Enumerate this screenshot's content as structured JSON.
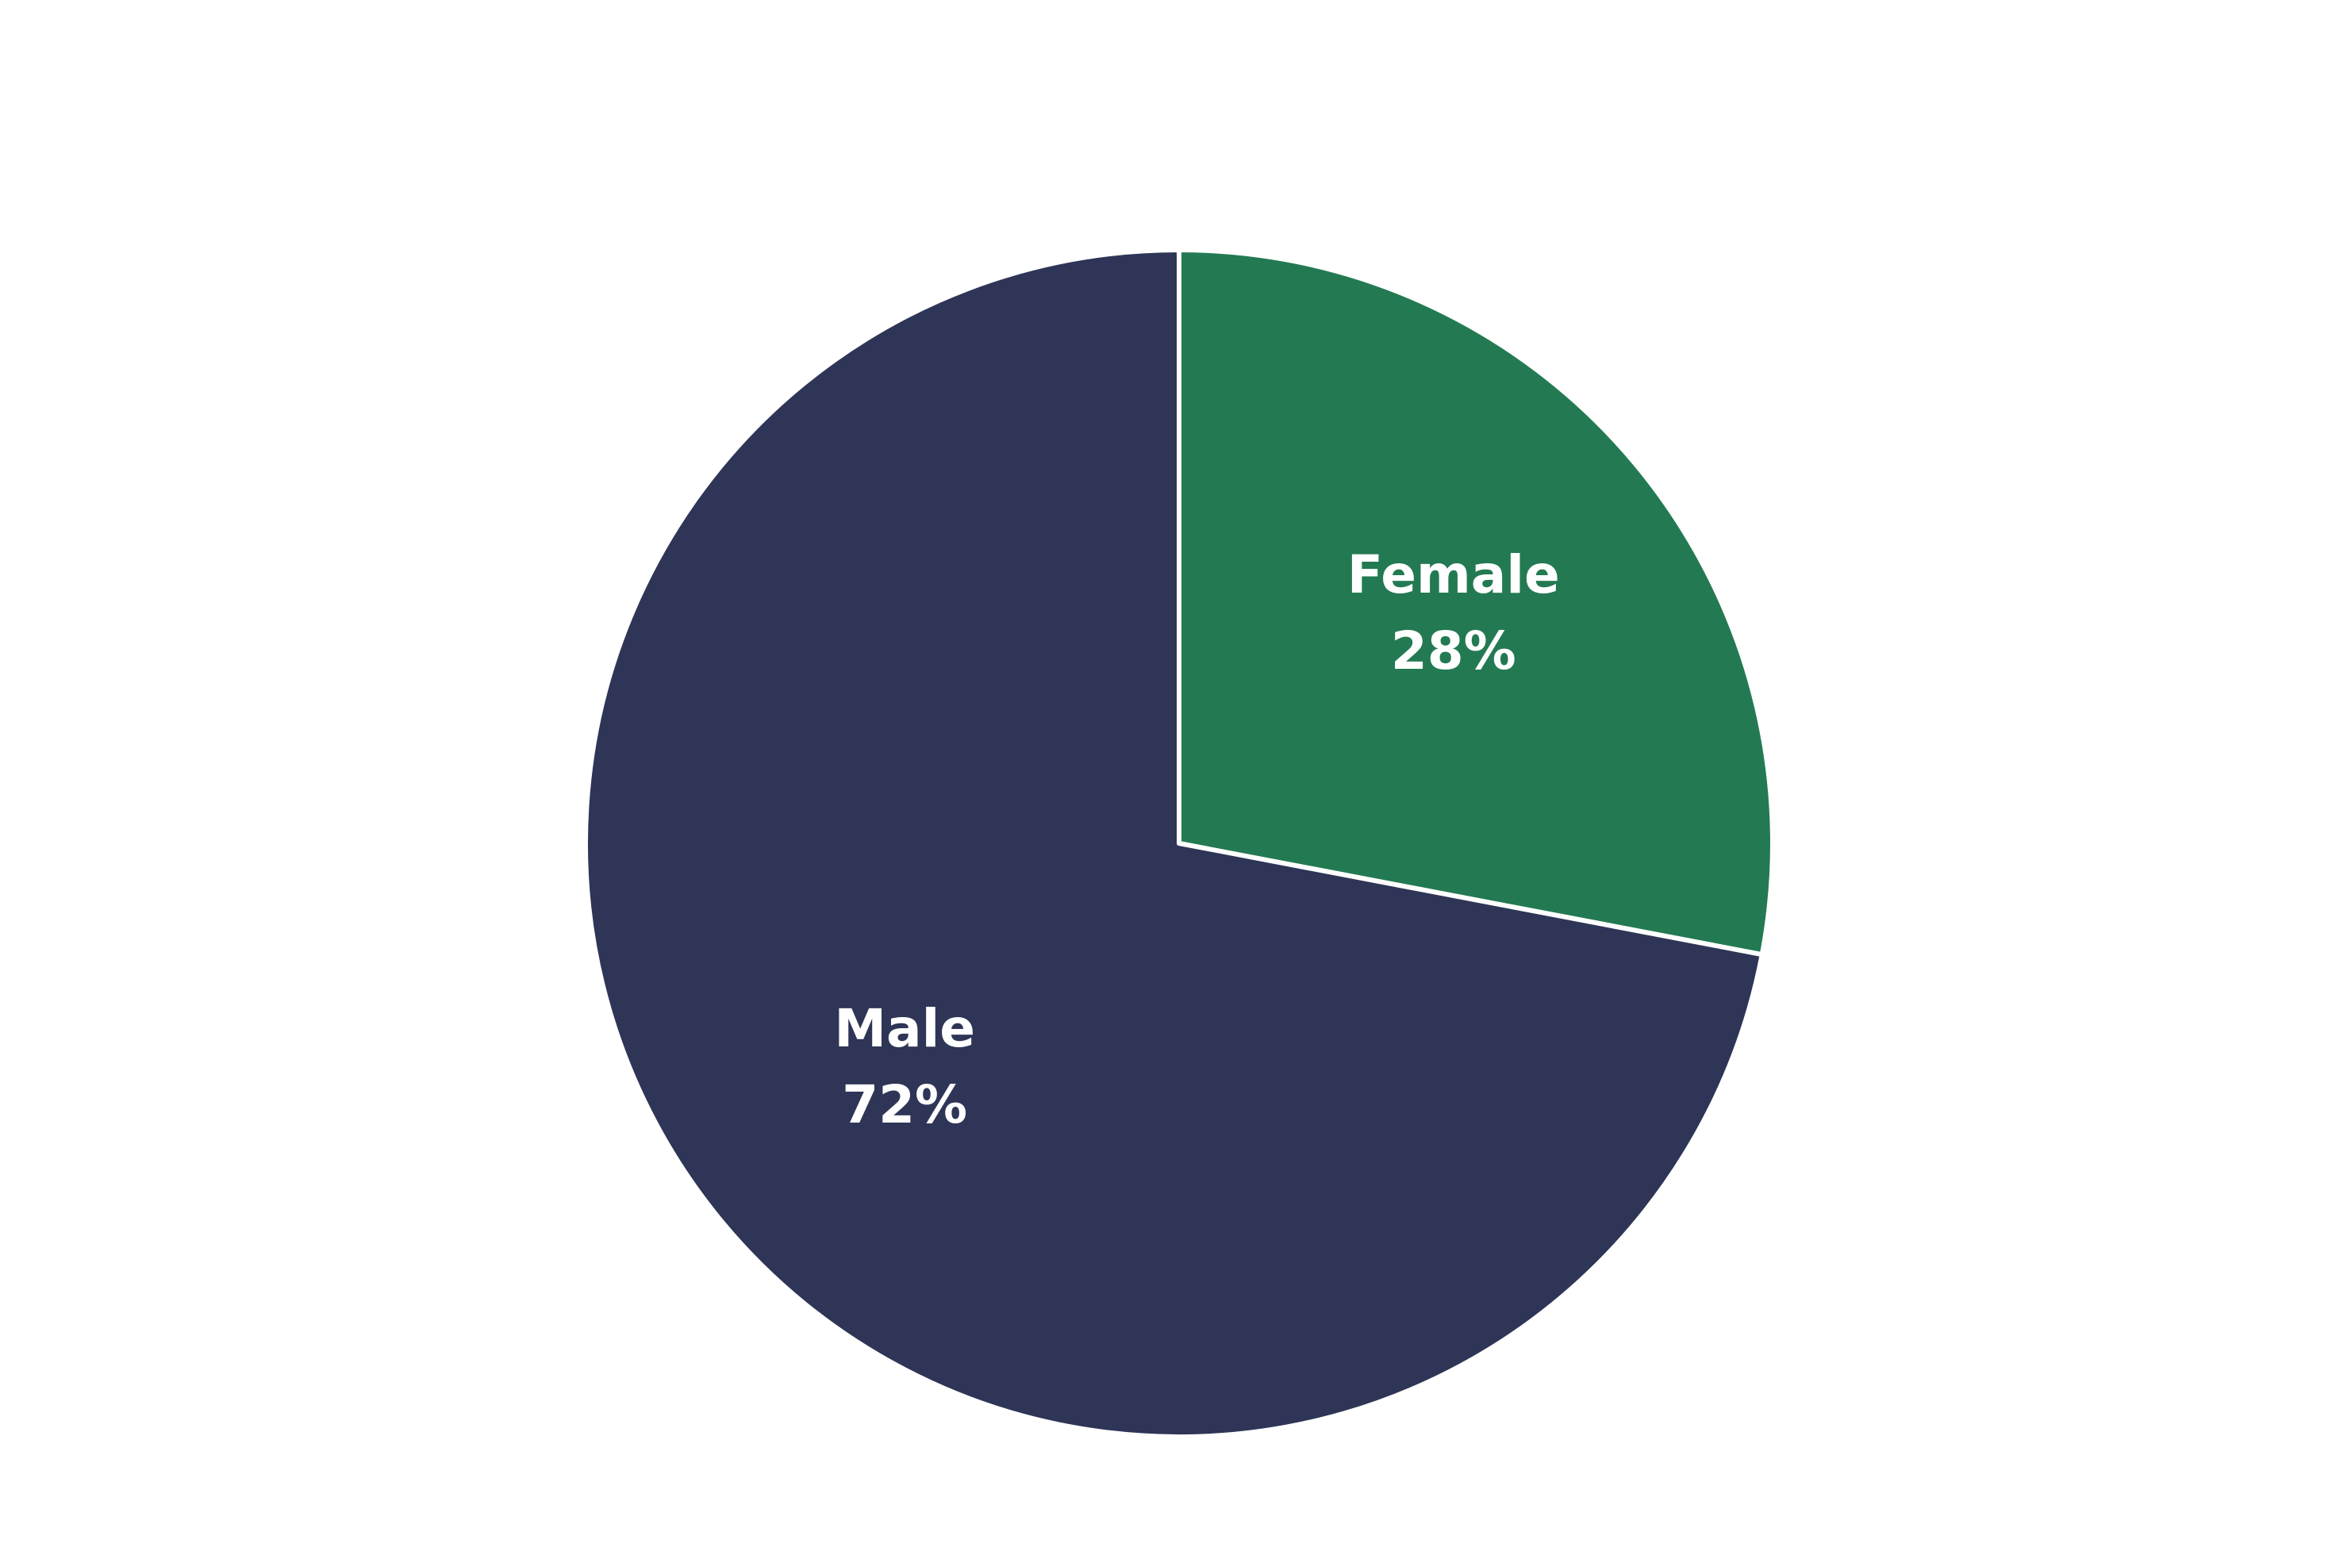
{
  "chart_data": {
    "type": "pie",
    "categories": [
      "Female",
      "Male"
    ],
    "values": [
      28,
      72
    ],
    "value_labels": [
      "28%",
      "72%"
    ],
    "colors": [
      "#237a52",
      "#2e3556"
    ]
  }
}
